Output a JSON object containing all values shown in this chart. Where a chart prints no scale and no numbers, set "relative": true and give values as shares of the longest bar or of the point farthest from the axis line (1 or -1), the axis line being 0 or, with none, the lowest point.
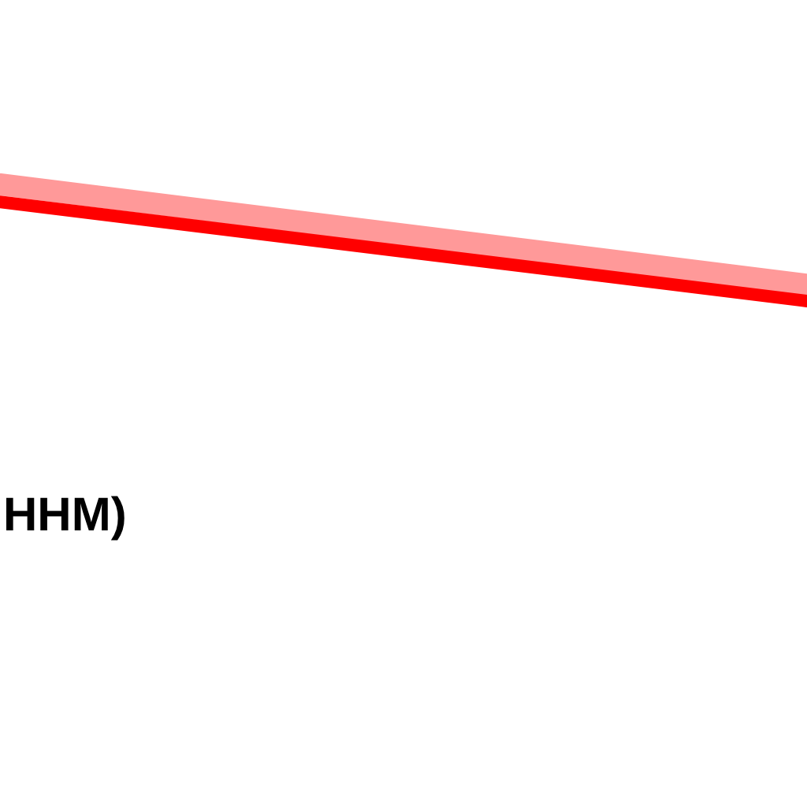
{
  "chart_data": {
    "type": "line",
    "relative": true,
    "categories": [
      null,
      null
    ],
    "series": [
      {
        "color": "#ff9999",
        "values": [
          1,
          0.14
        ]
      },
      {
        "color": "#ff0000",
        "values": [
          0.85,
          0
        ]
      }
    ],
    "annotations": [
      "HHM)"
    ],
    "marker": "none"
  }
}
